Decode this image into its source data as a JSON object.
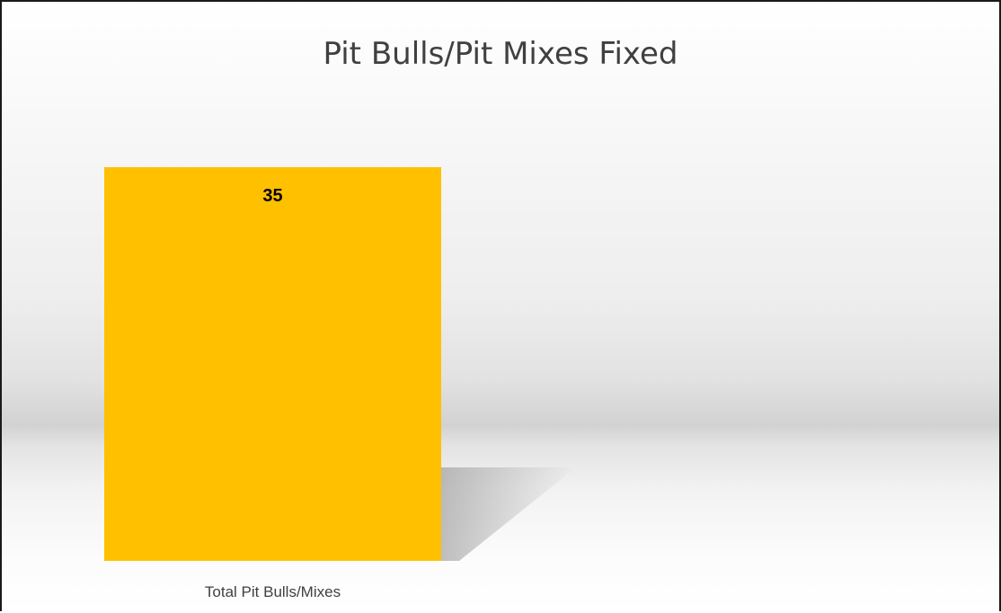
{
  "chart_data": {
    "type": "bar",
    "title": "Pit Bulls/Pit Mixes Fixed",
    "categories": [
      "Total Pit Bulls/Mixes"
    ],
    "values": [
      35
    ],
    "ylim": [
      0,
      35
    ],
    "xlabel": "",
    "ylabel": "",
    "grid": false,
    "legend": "none",
    "data_labels": [
      "35"
    ]
  },
  "colors": {
    "bar": "#FFC000",
    "shadow": "#8c8c8c",
    "title": "#404040",
    "tick_label": "#404040",
    "data_label": "#000000"
  }
}
